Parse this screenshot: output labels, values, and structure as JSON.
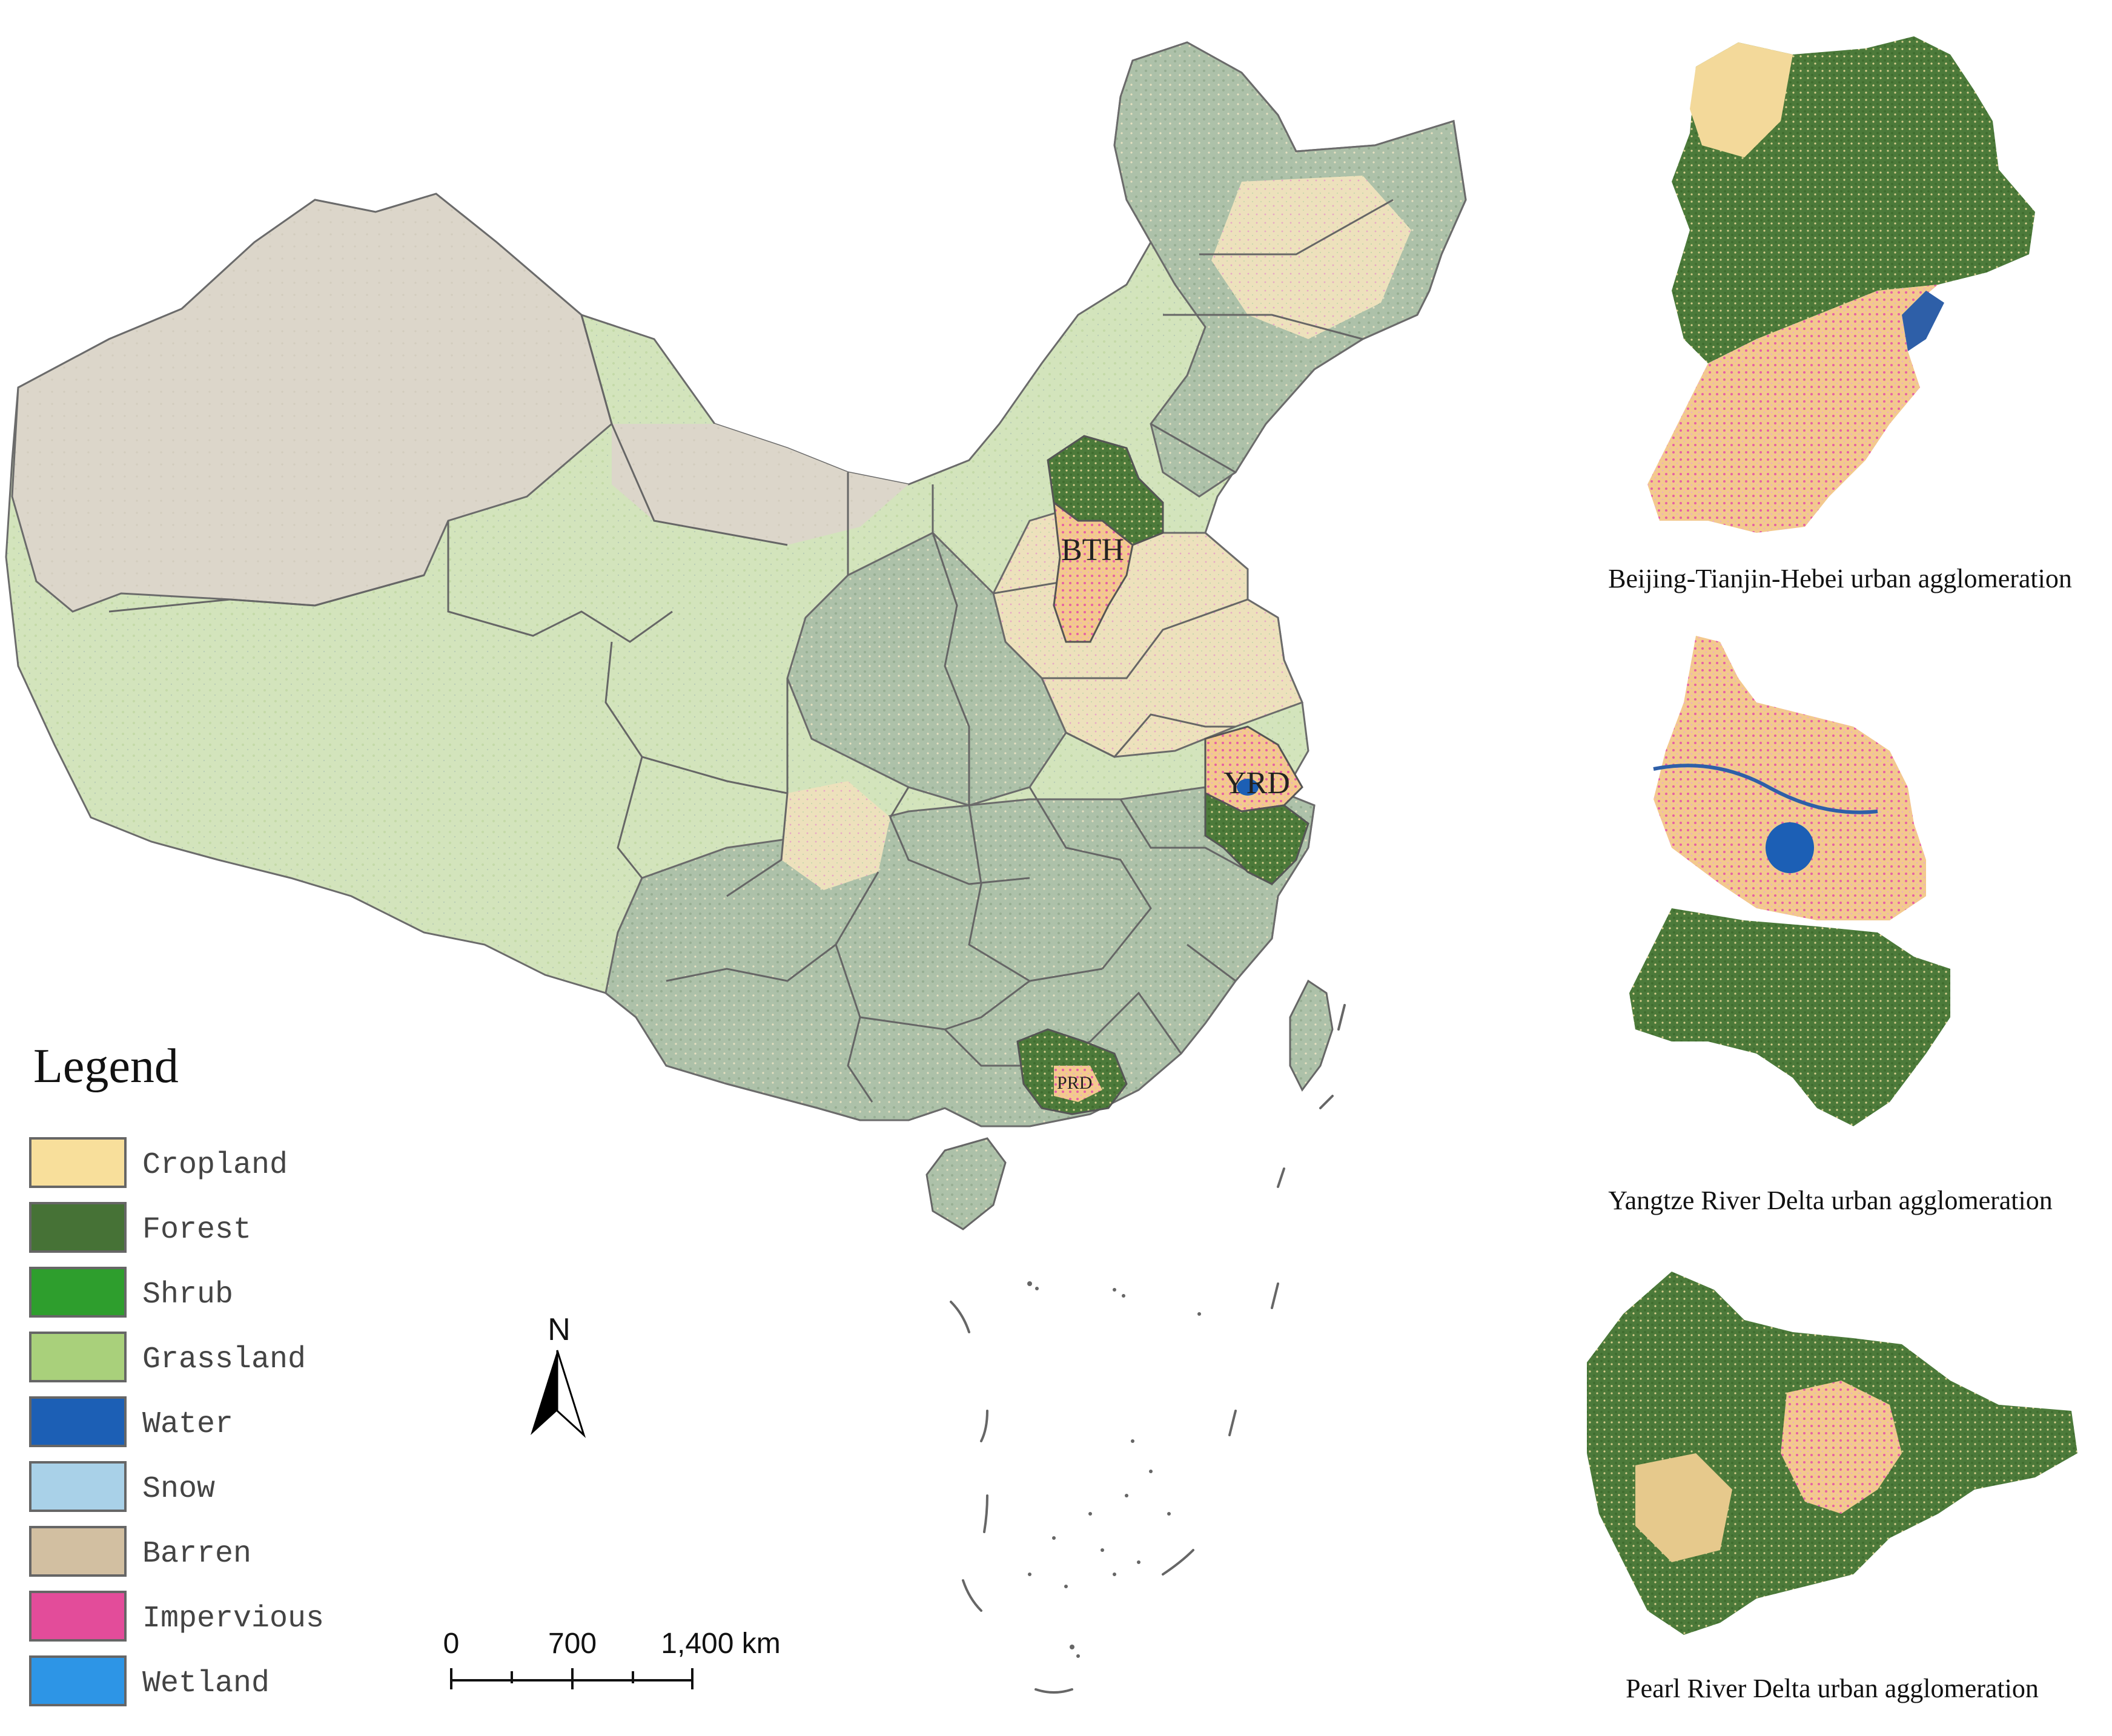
{
  "legend": {
    "title": "Legend",
    "items": [
      {
        "label": "Cropland",
        "color": "#F8DF9B"
      },
      {
        "label": "Forest",
        "color": "#467236"
      },
      {
        "label": "Shrub",
        "color": "#2E9E2D"
      },
      {
        "label": "Grassland",
        "color": "#A9D07B"
      },
      {
        "label": "Water",
        "color": "#1C5FB5"
      },
      {
        "label": "Snow",
        "color": "#A9D1E8"
      },
      {
        "label": "Barren",
        "color": "#D2BFA1"
      },
      {
        "label": "Impervious",
        "color": "#E34C9A"
      },
      {
        "label": "Wetland",
        "color": "#2D95E6"
      }
    ]
  },
  "north_arrow": {
    "label": "N"
  },
  "scale_bar": {
    "labels": [
      "0",
      "700",
      "1,400 km"
    ]
  },
  "region_labels": {
    "bth": "BTH",
    "yrd": "YRD",
    "prd": "PRD"
  },
  "insets": [
    {
      "caption": "Beijing-Tianjin-Hebei urban agglomeration"
    },
    {
      "caption": "Yangtze River Delta urban agglomeration"
    },
    {
      "caption": "Pearl River Delta urban agglomeration"
    }
  ],
  "colors": {
    "border": "#5a5a5a",
    "mountain_forest": "#A9BFA7",
    "plain_cropland": "#EFE6C8",
    "plateau_grassland": "#D5E6BE",
    "desert": "#DCD6C9"
  }
}
